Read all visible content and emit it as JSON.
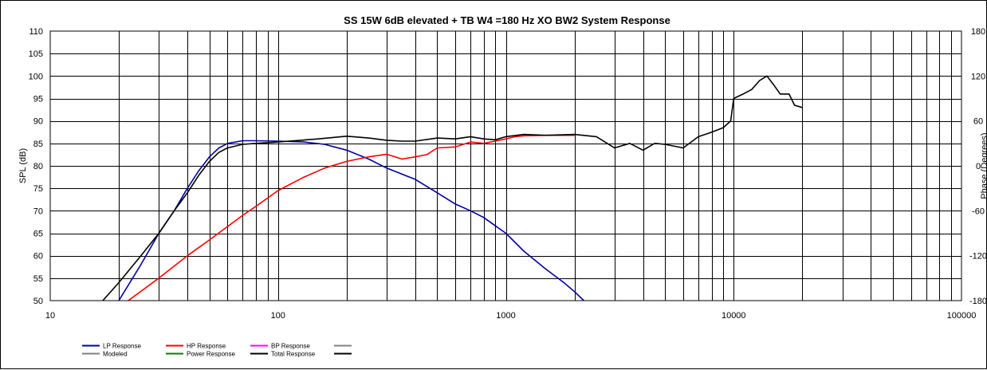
{
  "chart_data": {
    "type": "line",
    "title": "SS 15W 6dB elevated  + TB W4 =180 Hz XO BW2    System Response",
    "xlabel": "",
    "ylabel": "SPL (dB)",
    "y2label": "Phase (Degrees)",
    "x_scale": "log",
    "xlim": [
      10,
      100000
    ],
    "ylim": [
      50,
      110
    ],
    "y2lim": [
      -180,
      180
    ],
    "grid": true,
    "x_ticks": [
      "10",
      "100",
      "1000",
      "10000",
      "100000"
    ],
    "y_ticks": [
      "110",
      "105",
      "100",
      "95",
      "90",
      "85",
      "80",
      "75",
      "70",
      "65",
      "60",
      "55",
      "50"
    ],
    "y2_ticks": [
      "180",
      "120",
      "60",
      "0",
      "-60",
      "-120",
      "-180"
    ],
    "legend_position": "bottom-left",
    "legend": [
      {
        "name": "LP Response",
        "color": "#0000a0"
      },
      {
        "name": "HP Response",
        "color": "#ff0000"
      },
      {
        "name": "BP Response",
        "color": "#ff00ff"
      },
      {
        "name": "",
        "color": "#808080"
      },
      {
        "name": "Modeled",
        "color": "#808080"
      },
      {
        "name": "Power Response",
        "color": "#008000"
      },
      {
        "name": "Total Response",
        "color": "#000000"
      },
      {
        "name": "",
        "color": "#000000"
      }
    ],
    "series": [
      {
        "name": "LP Response",
        "color": "#0000a0",
        "x": [
          20,
          25,
          30,
          35,
          40,
          45,
          50,
          55,
          60,
          70,
          80,
          100,
          130,
          160,
          200,
          250,
          300,
          400,
          500,
          600,
          700,
          800,
          1000,
          1200,
          1500,
          1800,
          2000,
          2200
        ],
        "y": [
          50,
          58,
          65,
          70,
          75,
          79,
          82,
          84,
          85,
          85.6,
          85.6,
          85.5,
          85.3,
          84.8,
          83.5,
          81.5,
          79.5,
          77,
          74,
          71.5,
          70,
          68.5,
          65,
          61,
          57,
          54,
          52,
          50
        ]
      },
      {
        "name": "HP Response",
        "color": "#ff0000",
        "x": [
          22,
          30,
          40,
          50,
          60,
          70,
          80,
          100,
          130,
          160,
          200,
          250,
          300,
          350,
          400,
          450,
          500,
          600,
          700,
          800,
          900,
          1000,
          1100,
          1200,
          1500,
          2000
        ],
        "y": [
          50,
          55,
          60,
          63.5,
          66.5,
          69,
          71,
          74.5,
          77.5,
          79.5,
          81,
          82,
          82.6,
          81.5,
          82,
          82.5,
          84,
          84.2,
          85.3,
          85,
          85.5,
          86,
          86.5,
          86.7,
          86.8,
          86.8
        ]
      },
      {
        "name": "Total Response",
        "color": "#000000",
        "x": [
          17,
          20,
          25,
          30,
          35,
          40,
          45,
          50,
          55,
          60,
          70,
          80,
          100,
          150,
          200,
          250,
          300,
          350,
          400,
          500,
          600,
          700,
          800,
          900,
          1000,
          1200,
          1500,
          2000,
          2500,
          3000,
          3500,
          4000,
          4500,
          5000,
          6000,
          7000,
          8000,
          9000,
          9700,
          10000,
          11000,
          12000,
          13000,
          14000,
          15000,
          16000,
          17500,
          18500,
          20000
        ],
        "y": [
          50,
          54,
          60,
          65,
          70,
          74,
          78,
          81,
          83,
          84,
          84.8,
          85,
          85.3,
          86,
          86.6,
          86.2,
          85.7,
          85.5,
          85.5,
          86.2,
          86,
          86.5,
          86,
          85.8,
          86.5,
          87,
          86.8,
          87,
          86.5,
          84,
          85,
          83.5,
          85,
          84.8,
          84,
          86.5,
          87.5,
          88.5,
          90,
          95,
          96,
          97,
          99,
          100,
          98,
          96,
          96,
          93.5,
          93
        ]
      }
    ]
  }
}
